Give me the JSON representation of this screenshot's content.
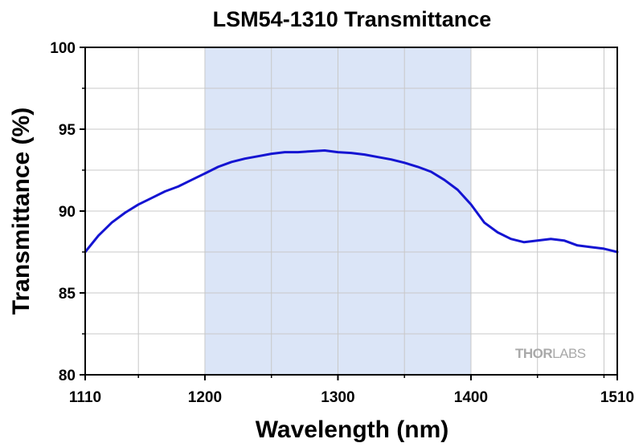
{
  "chart_data": {
    "type": "line",
    "title": "LSM54-1310 Transmittance",
    "xlabel": "Wavelength (nm)",
    "ylabel": "Transmittance (%)",
    "xlim": [
      1110,
      1510
    ],
    "ylim": [
      80,
      100
    ],
    "xticks": [
      1110,
      1200,
      1300,
      1400,
      1510
    ],
    "yticks": [
      80,
      85,
      90,
      95,
      100
    ],
    "grid": true,
    "highlight_band": {
      "x": [
        1200,
        1400
      ],
      "color": "#dbe5f7"
    },
    "series": [
      {
        "color": "#1414d2",
        "x": [
          1110,
          1120,
          1130,
          1140,
          1150,
          1160,
          1170,
          1180,
          1190,
          1200,
          1210,
          1220,
          1230,
          1240,
          1250,
          1260,
          1270,
          1280,
          1290,
          1300,
          1310,
          1320,
          1330,
          1340,
          1350,
          1360,
          1370,
          1380,
          1390,
          1400,
          1410,
          1420,
          1430,
          1440,
          1450,
          1460,
          1470,
          1480,
          1490,
          1500,
          1510
        ],
        "y": [
          87.5,
          88.5,
          89.3,
          89.9,
          90.4,
          90.8,
          91.2,
          91.5,
          91.9,
          92.3,
          92.7,
          93.0,
          93.2,
          93.35,
          93.5,
          93.6,
          93.6,
          93.65,
          93.7,
          93.6,
          93.55,
          93.45,
          93.3,
          93.15,
          92.95,
          92.7,
          92.4,
          91.9,
          91.3,
          90.4,
          89.3,
          88.7,
          88.3,
          88.1,
          88.2,
          88.3,
          88.2,
          87.9,
          87.8,
          87.7,
          87.5
        ]
      }
    ]
  },
  "watermark": {
    "part1": "THOR",
    "part2": "LABS"
  }
}
